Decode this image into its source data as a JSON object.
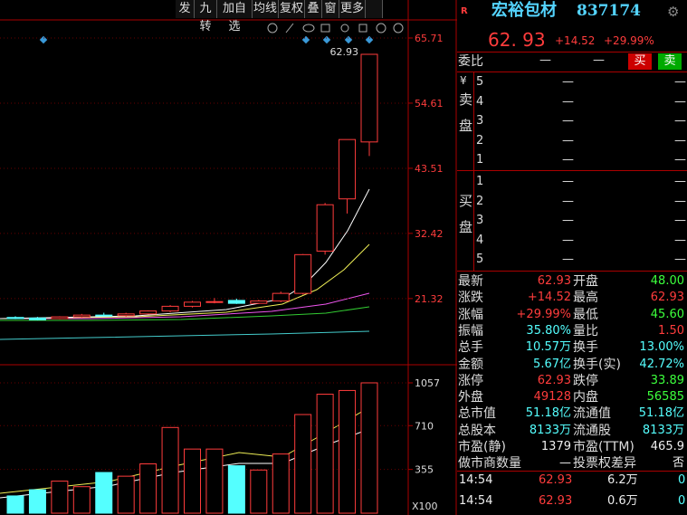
{
  "toolbar": [
    "发",
    "九转",
    "加自选",
    "均线",
    "复权",
    "叠",
    "窗",
    "更多"
  ],
  "chart_data": {
    "type": "candlestick",
    "up_color": "#ff3c3c",
    "down_color": "#54ffff",
    "open": [
      18.1,
      18.0,
      17.9,
      18.2,
      18.5,
      18.4,
      18.7,
      19.2,
      20.0,
      20.7,
      21.0,
      20.5,
      20.9,
      22.2,
      29.4,
      38.3,
      48.0
    ],
    "high": [
      18.3,
      18.2,
      18.3,
      18.7,
      18.9,
      18.9,
      19.3,
      20.2,
      20.9,
      21.4,
      21.3,
      21.1,
      22.5,
      28.9,
      37.6,
      48.41,
      62.93
    ],
    "low": [
      17.8,
      17.6,
      17.8,
      18.0,
      18.3,
      18.2,
      18.6,
      19.0,
      19.8,
      20.5,
      20.4,
      20.4,
      20.7,
      22.0,
      28.8,
      35.8,
      45.6
    ],
    "close": [
      17.9,
      17.7,
      18.2,
      18.5,
      18.4,
      18.7,
      19.2,
      20.0,
      20.7,
      20.8,
      20.5,
      20.9,
      22.2,
      28.8,
      37.3,
      48.41,
      62.93
    ],
    "ylim": [
      10.5,
      69.1
    ],
    "yticks": [
      21.32,
      32.42,
      43.51,
      54.61,
      65.71
    ],
    "last_price_label": "62.93",
    "volume": [
      140,
      190,
      260,
      215,
      330,
      300,
      400,
      695,
      520,
      520,
      385,
      350,
      480,
      800,
      965,
      995,
      1057
    ],
    "vlim": [
      0,
      1189
    ],
    "vticks": [
      355,
      710,
      1057
    ],
    "volume_unit": "X100"
  },
  "quote": {
    "badge": "R",
    "name": "宏裕包材",
    "code": "837174",
    "price": "62. 93",
    "change": "+14.52",
    "change_pct": "+29.99%"
  },
  "order_ratio": {
    "label": "委比",
    "values": [
      "—",
      "—"
    ],
    "buy": "买",
    "sell": "卖"
  },
  "order_book": {
    "currency": "¥",
    "sell_label": "卖盘",
    "buy_label": "买盘",
    "sell": [
      [
        "5",
        "—",
        "—"
      ],
      [
        "4",
        "—",
        "—"
      ],
      [
        "3",
        "—",
        "—"
      ],
      [
        "2",
        "—",
        "—"
      ],
      [
        "1",
        "—",
        "—"
      ]
    ],
    "buy": [
      [
        "1",
        "—",
        "—"
      ],
      [
        "2",
        "—",
        "—"
      ],
      [
        "3",
        "—",
        "—"
      ],
      [
        "4",
        "—",
        "—"
      ],
      [
        "5",
        "—",
        "—"
      ]
    ]
  },
  "stats": [
    [
      [
        "最新",
        "62.93",
        "red"
      ],
      [
        "开盘",
        "48.00",
        "green"
      ]
    ],
    [
      [
        "涨跌",
        "+14.52",
        "red"
      ],
      [
        "最高",
        "62.93",
        "red"
      ]
    ],
    [
      [
        "涨幅",
        "+29.99%",
        "red"
      ],
      [
        "最低",
        "45.60",
        "green"
      ]
    ],
    [
      [
        "振幅",
        "35.80%",
        "cyan"
      ],
      [
        "量比",
        "1.50",
        "red"
      ]
    ],
    [
      [
        "总手",
        "10.57万",
        "cyan"
      ],
      [
        "换手",
        "13.00%",
        "cyan"
      ]
    ],
    [
      [
        "金额",
        "5.67亿",
        "cyan"
      ],
      [
        "换手(实)",
        "42.72%",
        "cyan"
      ]
    ],
    [
      [
        "涨停",
        "62.93",
        "red"
      ],
      [
        "跌停",
        "33.89",
        "green"
      ]
    ],
    [
      [
        "外盘",
        "49128",
        "red"
      ],
      [
        "内盘",
        "56585",
        "green"
      ]
    ],
    [
      [
        "总市值",
        "51.18亿",
        "cyan"
      ],
      [
        "流通值",
        "51.18亿",
        "cyan"
      ]
    ],
    [
      [
        "总股本",
        "8133万",
        "cyan"
      ],
      [
        "流通股",
        "8133万",
        "cyan"
      ]
    ],
    [
      [
        "市盈(静)",
        "1379",
        "white"
      ],
      [
        "市盈(TTM)",
        "465.9",
        "white"
      ]
    ],
    [
      [
        "做市商数量",
        "—",
        "white"
      ],
      [
        "投票权差异",
        "否",
        "white"
      ]
    ]
  ],
  "trades": [
    [
      "14:54",
      "62.93",
      "6.2万",
      "0"
    ],
    [
      "14:54",
      "62.93",
      "0.6万",
      "0"
    ]
  ]
}
